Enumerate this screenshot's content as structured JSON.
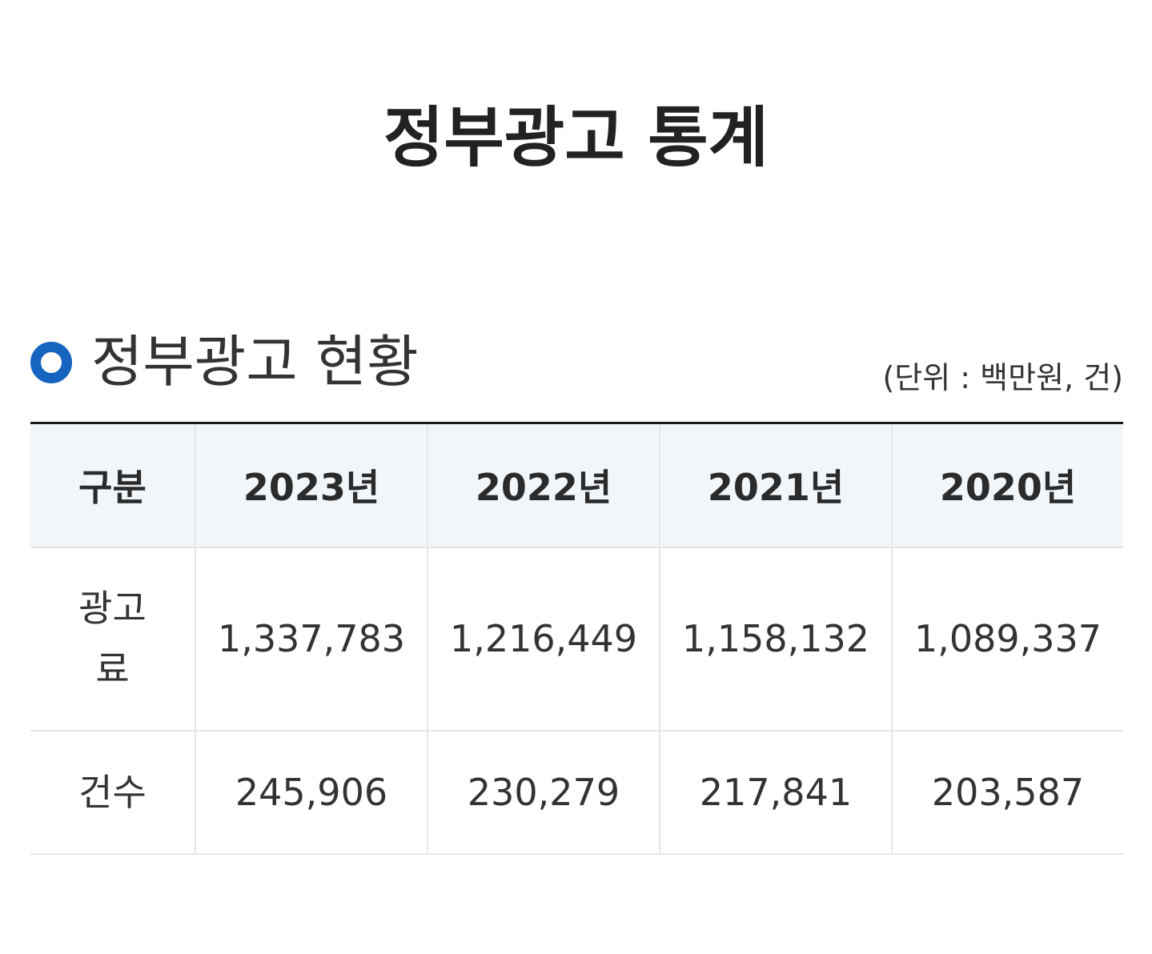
{
  "page": {
    "title": "정부광고 통계"
  },
  "section": {
    "icon": "circle-bullet-icon",
    "accent_color": "#1565c0",
    "title": "정부광고 현황",
    "unit_note": "(단위 : 백만원, 건)"
  },
  "table": {
    "headers": [
      "구분",
      "2023년",
      "2022년",
      "2021년",
      "2020년"
    ],
    "rows": [
      {
        "label": "광고료",
        "values": [
          "1,337,783",
          "1,216,449",
          "1,158,132",
          "1,089,337"
        ]
      },
      {
        "label": "건수",
        "values": [
          "245,906",
          "230,279",
          "217,841",
          "203,587"
        ]
      }
    ]
  }
}
